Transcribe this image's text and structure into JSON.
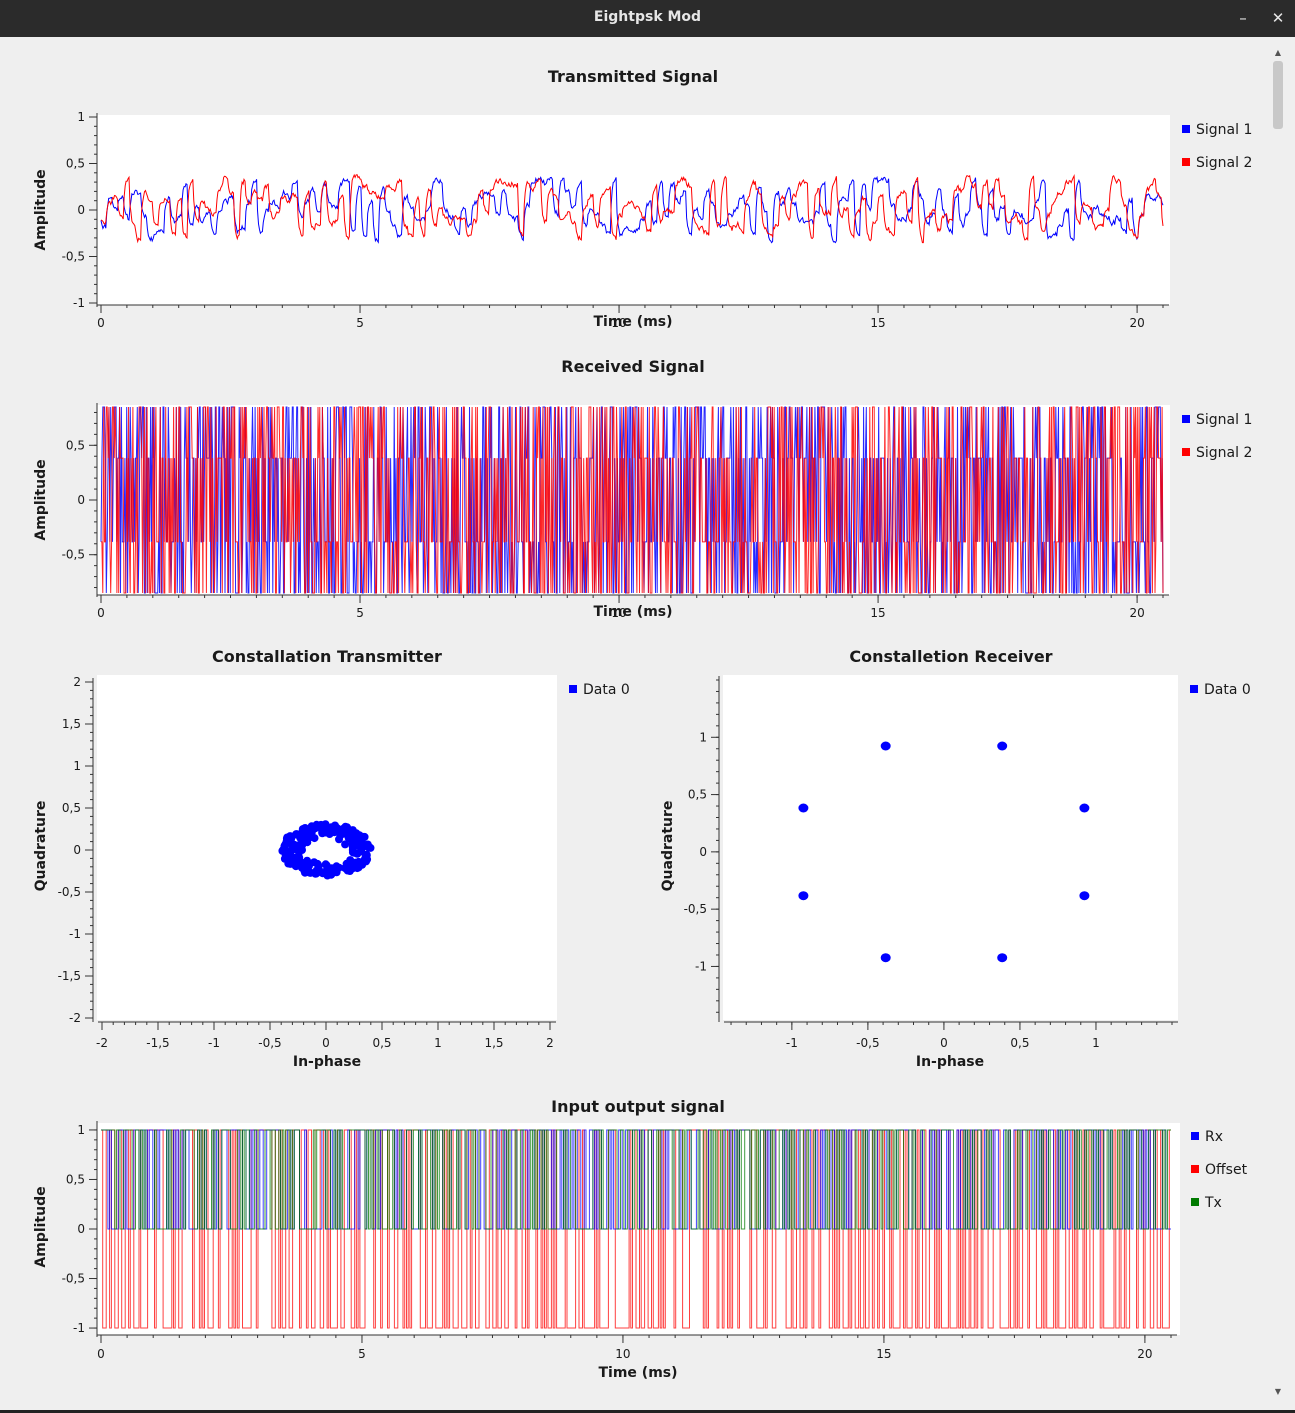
{
  "window": {
    "title": "Eightpsk Mod",
    "minimize_glyph": "–",
    "close_glyph": "✕"
  },
  "colors": {
    "blue": "#0000ff",
    "red": "#ff0000",
    "green": "#007a00",
    "navy": "#000080",
    "darkred": "#cc0000"
  },
  "plots": {
    "transmitted": {
      "title": "Transmitted Signal",
      "ylabel": "Amplitude",
      "xlabel": "Time (ms)",
      "legend": [
        "Signal 1",
        "Signal 2"
      ]
    },
    "received": {
      "title": "Received Signal",
      "ylabel": "Amplitude",
      "xlabel": "Time (ms)",
      "legend": [
        "Signal 1",
        "Signal 2"
      ]
    },
    "const_tx": {
      "title": "Constallation Transmitter",
      "ylabel": "Quadrature",
      "xlabel": "In-phase",
      "legend": [
        "Data 0"
      ]
    },
    "const_rx": {
      "title": "Constalletion Receiver",
      "ylabel": "Quadrature",
      "xlabel": "In-phase",
      "legend": [
        "Data 0"
      ]
    },
    "io": {
      "title": "Input output signal",
      "ylabel": "Amplitude",
      "xlabel": "Time (ms)",
      "legend": [
        "Rx",
        "Offset",
        "Tx"
      ]
    }
  },
  "chart_data": [
    {
      "id": "transmitted",
      "type": "line",
      "title": "Transmitted Signal",
      "xlabel": "Time (ms)",
      "ylabel": "Amplitude",
      "xlim": [
        0,
        20.5
      ],
      "ylim": [
        -1,
        1
      ],
      "xticks": [
        0,
        5,
        10,
        15,
        20
      ],
      "xtick_labels": [
        "0",
        "5",
        "10",
        "15",
        "20"
      ],
      "yticks": [
        1,
        0.5,
        0,
        -0.5,
        -1
      ],
      "ytick_labels": [
        "1",
        "0,5",
        "0",
        "-0,5",
        "-1"
      ],
      "series": [
        {
          "name": "Signal 1",
          "color": "#0000ff",
          "range": [
            -0.35,
            0.35
          ]
        },
        {
          "name": "Signal 2",
          "color": "#ff0000",
          "range": [
            -0.35,
            0.38
          ]
        }
      ]
    },
    {
      "id": "received",
      "type": "line",
      "title": "Received Signal",
      "xlabel": "Time (ms)",
      "ylabel": "Amplitude",
      "xlim": [
        0,
        20.5
      ],
      "ylim": [
        -0.85,
        0.85
      ],
      "xticks": [
        0,
        5,
        10,
        15,
        20
      ],
      "xtick_labels": [
        "0",
        "5",
        "10",
        "15",
        "20"
      ],
      "yticks": [
        0.5,
        0,
        -0.5
      ],
      "ytick_labels": [
        "0,5",
        "0",
        "-0,5"
      ],
      "levels": [
        -0.924,
        -0.383,
        0.383,
        0.924
      ],
      "series": [
        {
          "name": "Signal 1",
          "color": "#0000ff"
        },
        {
          "name": "Signal 2",
          "color": "#ff0000"
        }
      ]
    },
    {
      "id": "const_tx",
      "type": "scatter",
      "title": "Constallation Transmitter",
      "xlabel": "In-phase",
      "ylabel": "Quadrature",
      "xlim": [
        -2,
        2
      ],
      "ylim": [
        -2,
        2
      ],
      "xticks": [
        -2,
        -1.5,
        -1,
        -0.5,
        0,
        0.5,
        1,
        1.5,
        2
      ],
      "xtick_labels": [
        "-2",
        "-1,5",
        "-1",
        "-0,5",
        "0",
        "0,5",
        "1",
        "1,5",
        "2"
      ],
      "yticks": [
        2,
        1.5,
        1,
        0.5,
        0,
        -0.5,
        -1,
        -1.5,
        -2
      ],
      "ytick_labels": [
        "2",
        "1,5",
        "1",
        "0,5",
        "0",
        "-0,5",
        "-1",
        "-1,5",
        "-2"
      ],
      "series": [
        {
          "name": "Data 0",
          "color": "#0000ff",
          "cluster_radius": 0.38
        }
      ]
    },
    {
      "id": "const_rx",
      "type": "scatter",
      "title": "Constalletion Receiver",
      "xlabel": "In-phase",
      "ylabel": "Quadrature",
      "xlim": [
        -1.42,
        1.5
      ],
      "ylim": [
        -1.45,
        1.5
      ],
      "xticks": [
        -1,
        -0.5,
        0,
        0.5,
        1
      ],
      "xtick_labels": [
        "-1",
        "-0,5",
        "0",
        "0,5",
        "1"
      ],
      "yticks": [
        1,
        0.5,
        0,
        -0.5,
        -1
      ],
      "ytick_labels": [
        "1",
        "0,5",
        "0",
        "-0,5",
        "-1"
      ],
      "series": [
        {
          "name": "Data 0",
          "color": "#0000ff",
          "points": [
            [
              0.383,
              0.924
            ],
            [
              0.924,
              0.383
            ],
            [
              0.924,
              -0.383
            ],
            [
              0.383,
              -0.924
            ],
            [
              -0.383,
              -0.924
            ],
            [
              -0.924,
              -0.383
            ],
            [
              -0.924,
              0.383
            ],
            [
              -0.383,
              0.924
            ]
          ]
        }
      ]
    },
    {
      "id": "io",
      "type": "line",
      "title": "Input output signal",
      "xlabel": "Time (ms)",
      "ylabel": "Amplitude",
      "xlim": [
        0,
        20.5
      ],
      "ylim": [
        -1.05,
        1.05
      ],
      "xticks": [
        0,
        5,
        10,
        15,
        20
      ],
      "xtick_labels": [
        "0",
        "5",
        "10",
        "15",
        "20"
      ],
      "yticks": [
        1,
        0.5,
        0,
        -0.5,
        -1
      ],
      "ytick_labels": [
        "1",
        "0,5",
        "0",
        "-0,5",
        "-1"
      ],
      "series": [
        {
          "name": "Rx",
          "color": "#0000ff",
          "levels": [
            0,
            1
          ]
        },
        {
          "name": "Offset",
          "color": "#ff0000",
          "levels": [
            -1,
            1
          ]
        },
        {
          "name": "Tx",
          "color": "#007a00",
          "levels": [
            0,
            1
          ]
        }
      ]
    }
  ]
}
